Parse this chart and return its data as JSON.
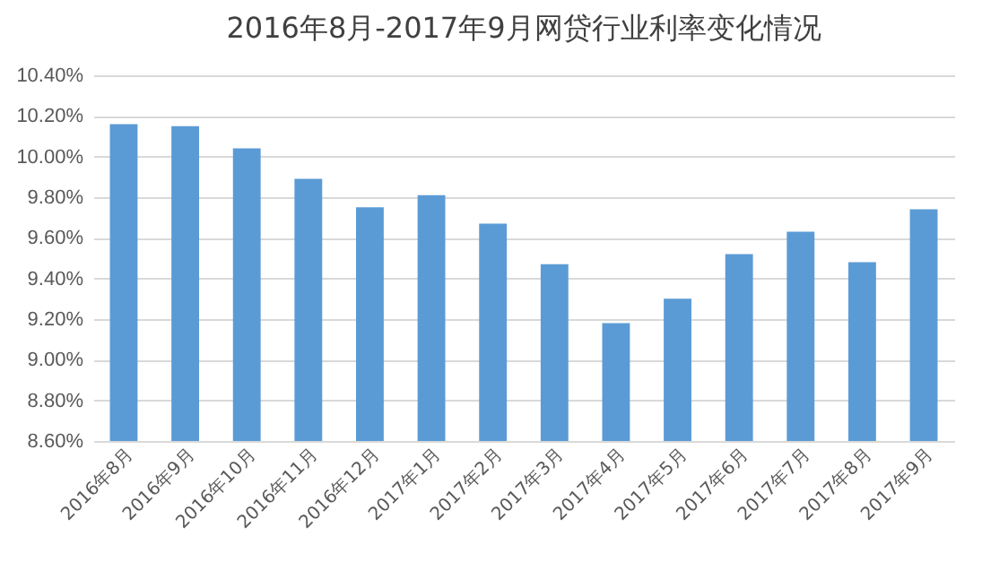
{
  "chart_data": {
    "type": "bar",
    "title": "2016年8月-2017年9月网贷行业利率变化情况",
    "categories": [
      "2016年8月",
      "2016年9月",
      "2016年10月",
      "2016年11月",
      "2016年12月",
      "2017年1月",
      "2017年2月",
      "2017年3月",
      "2017年4月",
      "2017年5月",
      "2017年6月",
      "2017年7月",
      "2017年8月",
      "2017年9月"
    ],
    "values": [
      10.16,
      10.15,
      10.04,
      9.89,
      9.75,
      9.81,
      9.67,
      9.47,
      9.18,
      9.3,
      9.52,
      9.63,
      9.48,
      9.74
    ],
    "color": "#5b9bd5",
    "ylim": [
      8.6,
      10.4
    ],
    "yticks": [
      {
        "value": 8.6,
        "label": "8.60%"
      },
      {
        "value": 8.8,
        "label": "8.80%"
      },
      {
        "value": 9.0,
        "label": "9.00%"
      },
      {
        "value": 9.2,
        "label": "9.20%"
      },
      {
        "value": 9.4,
        "label": "9.40%"
      },
      {
        "value": 9.6,
        "label": "9.60%"
      },
      {
        "value": 9.8,
        "label": "9.80%"
      },
      {
        "value": 10.0,
        "label": "10.00%"
      },
      {
        "value": 10.2,
        "label": "10.20%"
      },
      {
        "value": 10.4,
        "label": "10.40%"
      }
    ],
    "grid": true
  }
}
